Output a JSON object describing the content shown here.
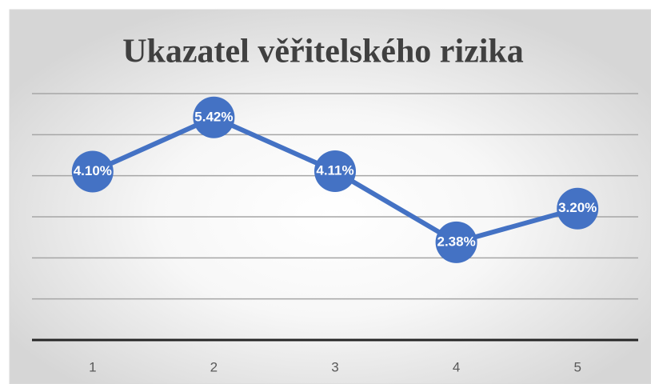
{
  "chart_data": {
    "type": "line",
    "title": "Ukazatel věřitelského rizika",
    "categories": [
      "1",
      "2",
      "3",
      "4",
      "5"
    ],
    "values": [
      4.1,
      5.42,
      4.11,
      2.38,
      3.2
    ],
    "value_labels": [
      "4.10%",
      "5.42%",
      "4.11%",
      "2.38%",
      "3.20%"
    ],
    "color": "#4472c4",
    "ylim": [
      0,
      6
    ],
    "yticks": [
      0,
      1,
      2,
      3,
      4,
      5,
      6
    ],
    "grid": true
  }
}
